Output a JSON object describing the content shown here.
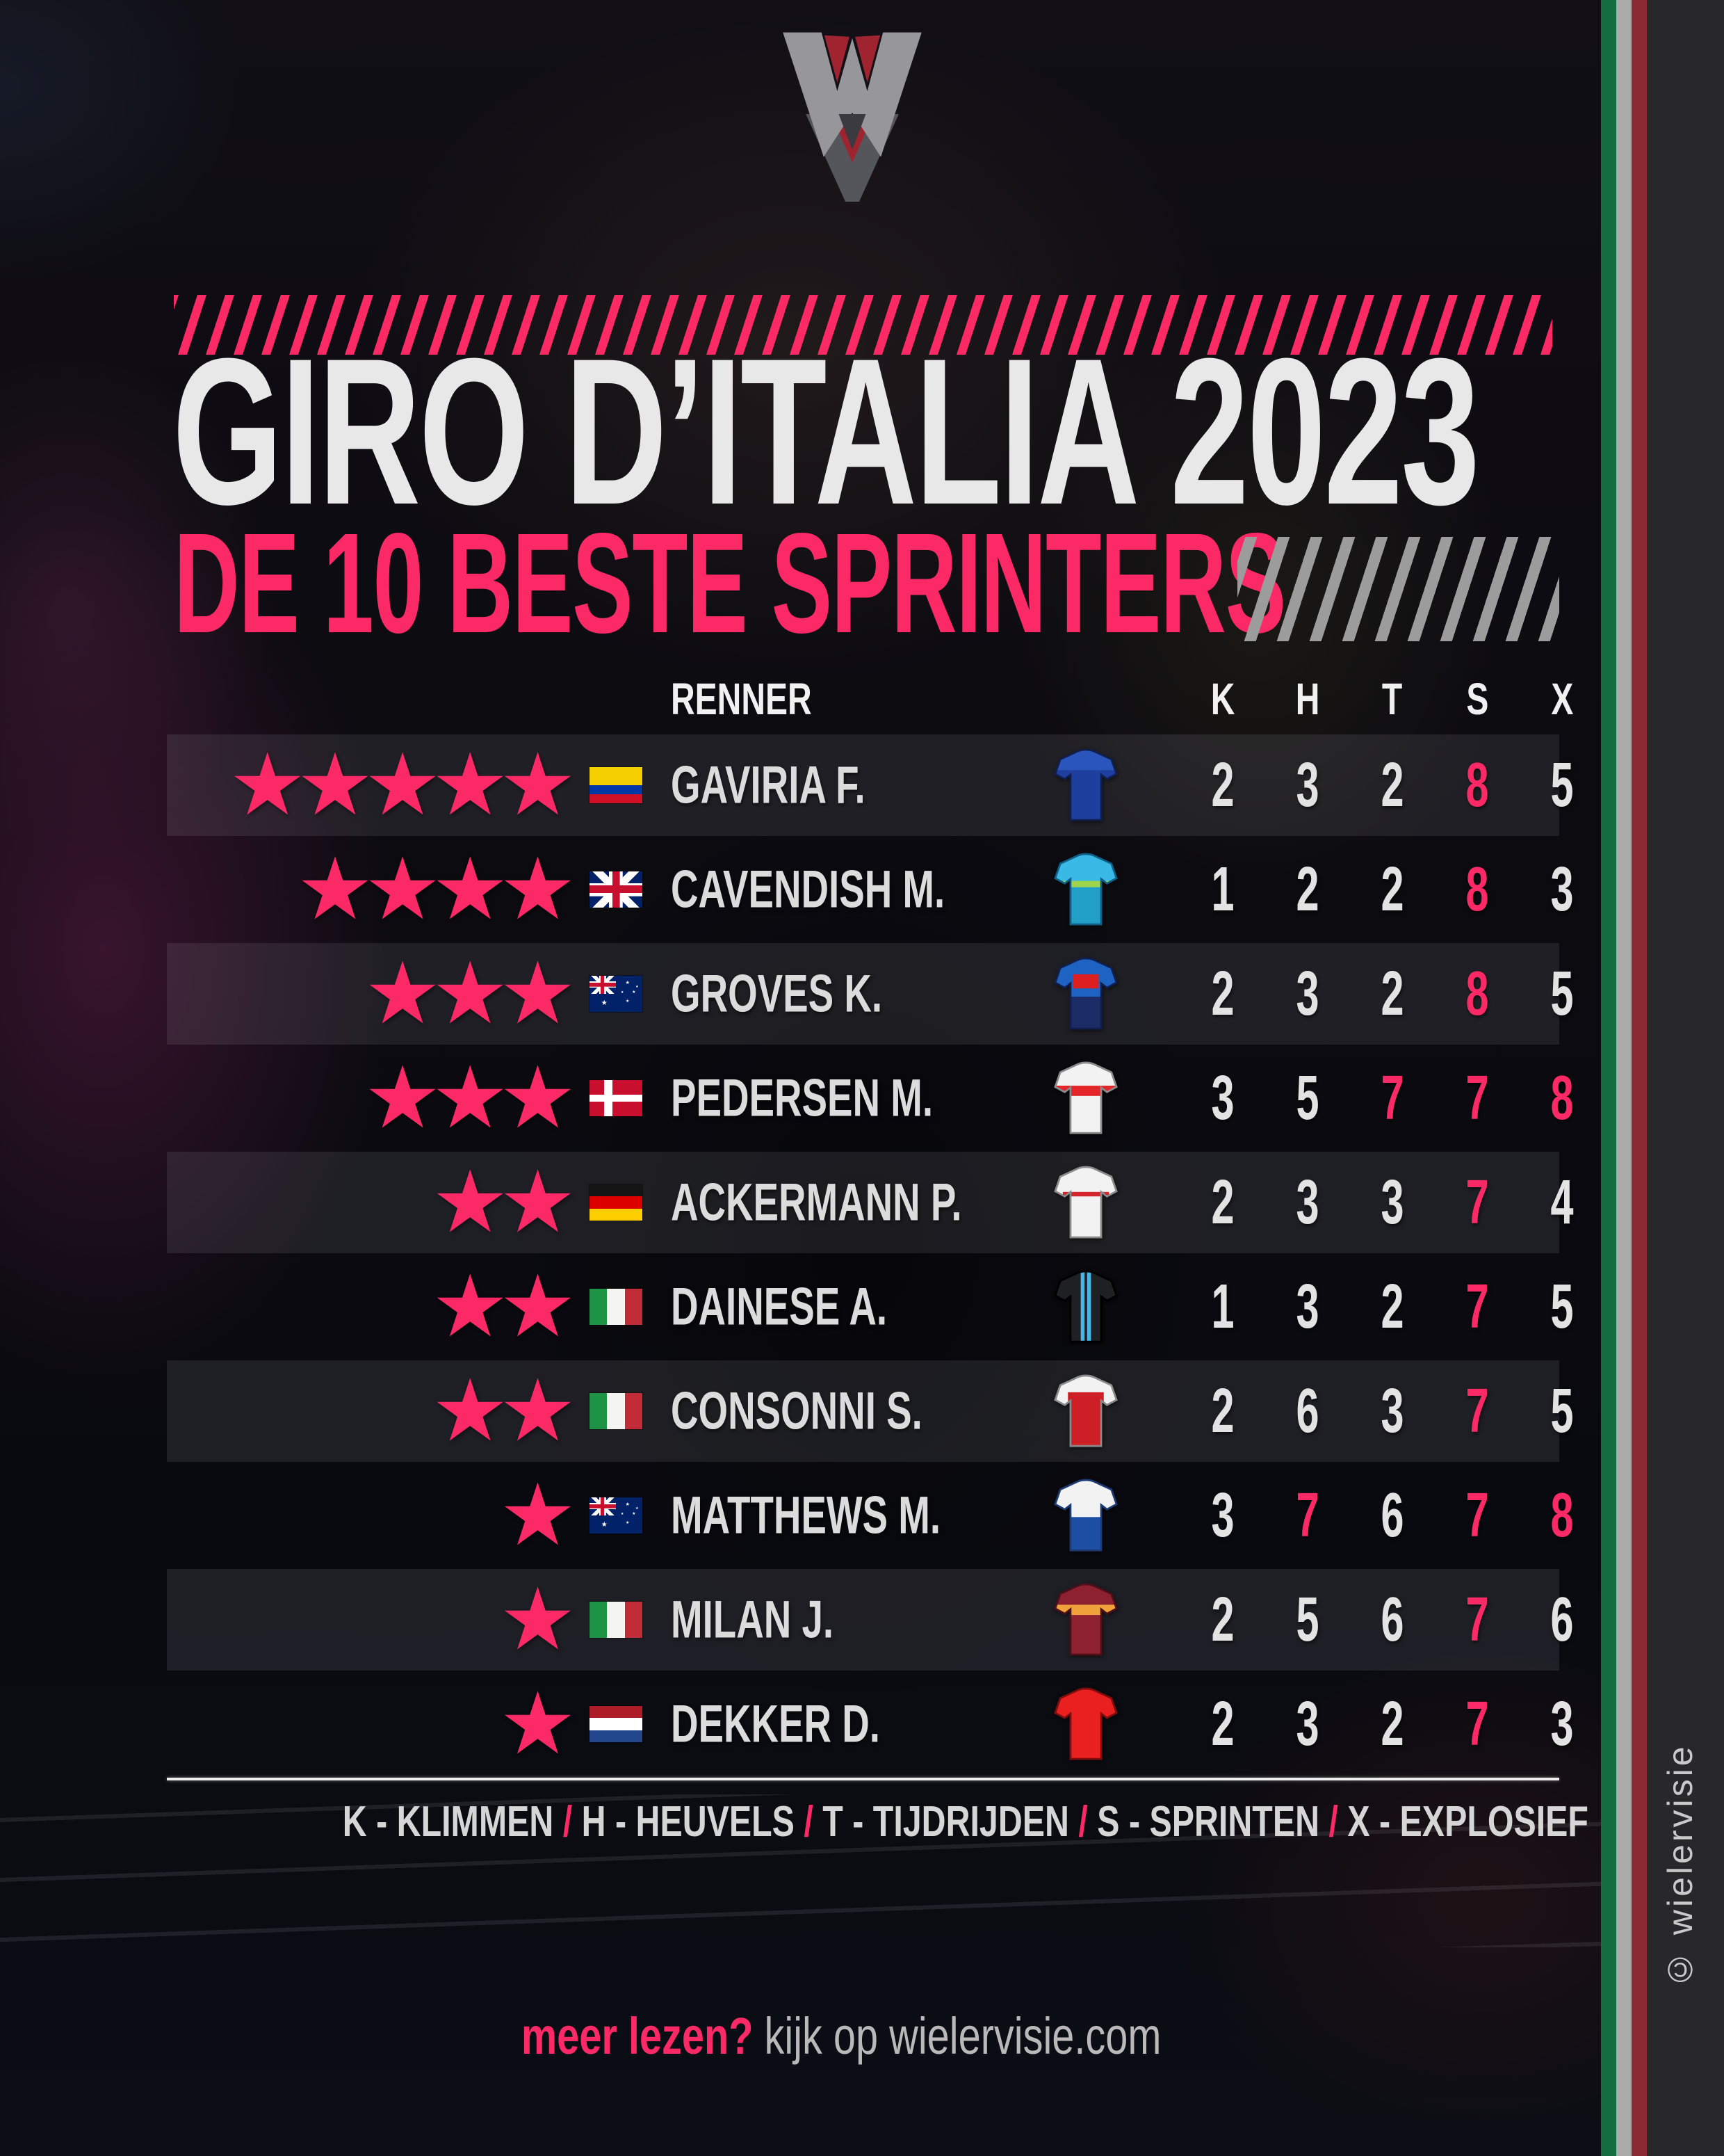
{
  "colors": {
    "pink": "#fb2a66",
    "white_text": "#e8e8e8",
    "gray_stripe": "#9c9c9c",
    "band_green": "#156c3e",
    "band_white": "#ababab",
    "band_red": "#8c2a33",
    "side_dark": "#28282a"
  },
  "branding": {
    "logo": "wielervisie-monogram",
    "copyright_vertical": "© wielervisie",
    "footer_prompt": "meer lezen?",
    "footer_rest": " kijk op wielervisie.com"
  },
  "header": {
    "title": "GIRO D’ITALIA 2023",
    "subtitle": "DE 10 BESTE SPRINTERS"
  },
  "table": {
    "name_header": "RENNER",
    "score_headers": [
      "K",
      "H",
      "T",
      "S",
      "X"
    ],
    "star_glyph": "★",
    "rows": [
      {
        "name": "GAVIRIA F.",
        "stars": 5,
        "flag": "colombia",
        "scores": [
          2,
          3,
          2,
          8,
          5
        ],
        "pink": [
          false,
          false,
          false,
          true,
          false
        ],
        "jersey": {
          "base": "#1e3f9e",
          "outline": "#101f4e",
          "layers": [
            {
              "x": 0,
              "y": 0,
              "w": 100,
              "h": 34,
              "c": "#2a55bb"
            }
          ]
        }
      },
      {
        "name": "CAVENDISH M.",
        "stars": 4,
        "flag": "uk",
        "scores": [
          1,
          2,
          2,
          8,
          3
        ],
        "pink": [
          false,
          false,
          false,
          true,
          false
        ],
        "jersey": {
          "base": "#3ab9e6",
          "outline": "#0f5e86",
          "layers": [
            {
              "x": 0,
              "y": 44,
              "w": 100,
              "h": 10,
              "c": "#9ed44d"
            },
            {
              "x": 0,
              "y": 54,
              "w": 100,
              "h": 61,
              "c": "#219fc6"
            }
          ]
        }
      },
      {
        "name": "GROVES K.",
        "stars": 3,
        "flag": "australia",
        "scores": [
          2,
          3,
          2,
          8,
          5
        ],
        "pink": [
          false,
          false,
          false,
          true,
          false
        ],
        "jersey": {
          "base": "#1e62c4",
          "outline": "#101f4e",
          "layers": [
            {
              "x": 0,
              "y": 62,
              "w": 100,
              "h": 53,
              "c": "#1b2c66"
            },
            {
              "x": 30,
              "y": 27,
              "w": 40,
              "h": 22,
              "c": "#de1f1f"
            }
          ]
        }
      },
      {
        "name": "PEDERSEN M.",
        "stars": 3,
        "flag": "denmark",
        "scores": [
          3,
          5,
          7,
          7,
          8
        ],
        "pink": [
          false,
          false,
          true,
          true,
          true
        ],
        "jersey": {
          "base": "#f2f2f2",
          "outline": "#8a8a8a",
          "layers": [
            {
              "x": 0,
              "y": 38,
              "w": 100,
              "h": 16,
              "c": "#e32428"
            }
          ]
        }
      },
      {
        "name": "ACKERMANN P.",
        "stars": 2,
        "flag": "germany",
        "scores": [
          2,
          3,
          3,
          7,
          4
        ],
        "pink": [
          false,
          false,
          false,
          true,
          false
        ],
        "jersey": {
          "base": "#f2f2f2",
          "outline": "#8a8a8a",
          "layers": [
            {
              "x": 14,
              "y": 41,
              "w": 72,
              "h": 7,
              "c": "#d5232e"
            }
          ]
        }
      },
      {
        "name": "DAINESE A.",
        "stars": 2,
        "flag": "italy",
        "scores": [
          1,
          3,
          2,
          7,
          5
        ],
        "pink": [
          false,
          false,
          false,
          true,
          false
        ],
        "jersey": {
          "base": "#1e2023",
          "outline": "#000000",
          "layers": [
            {
              "x": 42,
              "y": 0,
              "w": 6,
              "h": 115,
              "c": "#49b6e8"
            },
            {
              "x": 52,
              "y": 0,
              "w": 6,
              "h": 115,
              "c": "#49b6e8"
            }
          ]
        }
      },
      {
        "name": "CONSONNI S.",
        "stars": 2,
        "flag": "italy",
        "scores": [
          2,
          6,
          3,
          7,
          5
        ],
        "pink": [
          false,
          false,
          false,
          true,
          false
        ],
        "jersey": {
          "base": "#f2f2f2",
          "outline": "#8a8a8a",
          "layers": [
            {
              "x": 22,
              "y": 28,
              "w": 56,
              "h": 87,
              "c": "#ce1f26"
            }
          ]
        }
      },
      {
        "name": "MATTHEWS M.",
        "stars": 1,
        "flag": "australia",
        "scores": [
          3,
          7,
          6,
          7,
          8
        ],
        "pink": [
          false,
          true,
          false,
          true,
          true
        ],
        "jersey": {
          "base": "#f2f2f2",
          "outline": "#1c3a74",
          "layers": [
            {
              "x": 0,
              "y": 60,
              "w": 100,
              "h": 55,
              "c": "#1c4fa4"
            }
          ]
        }
      },
      {
        "name": "MILAN J.",
        "stars": 1,
        "flag": "italy",
        "scores": [
          2,
          5,
          6,
          7,
          6
        ],
        "pink": [
          false,
          false,
          false,
          true,
          false
        ],
        "jersey": {
          "base": "#8e2130",
          "outline": "#4d0f18",
          "layers": [
            {
              "x": 0,
              "y": 34,
              "w": 100,
              "h": 16,
              "c": "#f2a23b"
            }
          ]
        }
      },
      {
        "name": "DEKKER D.",
        "stars": 1,
        "flag": "netherlands",
        "scores": [
          2,
          3,
          2,
          7,
          3
        ],
        "pink": [
          false,
          false,
          false,
          true,
          false
        ],
        "jersey": {
          "base": "#e9201f",
          "outline": "#7e0d0d",
          "layers": []
        }
      }
    ]
  },
  "legend": {
    "separator": "/",
    "items": [
      {
        "abbr": "K",
        "term": "KLIMMEN"
      },
      {
        "abbr": "H",
        "term": "HEUVELS"
      },
      {
        "abbr": "T",
        "term": "TIJDRIJDEN"
      },
      {
        "abbr": "S",
        "term": "SPRINTEN"
      },
      {
        "abbr": "X",
        "term": "EXPLOSIEF"
      }
    ]
  },
  "flags": {
    "colombia": {
      "type": "stripes-h",
      "stripes": [
        {
          "c": "#f6cf00",
          "w": 2
        },
        {
          "c": "#0038a8",
          "w": 1
        },
        {
          "c": "#ce1126",
          "w": 1
        }
      ]
    },
    "uk": {
      "type": "uk"
    },
    "australia": {
      "type": "australia"
    },
    "denmark": {
      "type": "denmark"
    },
    "germany": {
      "type": "stripes-h",
      "stripes": [
        {
          "c": "#141414",
          "w": 1
        },
        {
          "c": "#dd0000",
          "w": 1
        },
        {
          "c": "#ffce00",
          "w": 1
        }
      ]
    },
    "italy": {
      "type": "stripes-v",
      "stripes": [
        {
          "c": "#1f9345",
          "w": 1
        },
        {
          "c": "#f4f5f0",
          "w": 1
        },
        {
          "c": "#c22b38",
          "w": 1
        }
      ]
    },
    "netherlands": {
      "type": "stripes-h",
      "stripes": [
        {
          "c": "#ae1c28",
          "w": 1
        },
        {
          "c": "#ffffff",
          "w": 1
        },
        {
          "c": "#21468b",
          "w": 1
        }
      ]
    }
  },
  "chart_data": {
    "type": "table",
    "title": "GIRO D’ITALIA 2023 — DE 10 BESTE SPRINTERS",
    "columns": [
      "RENNER",
      "K",
      "H",
      "T",
      "S",
      "X"
    ],
    "star_rating_max": 5,
    "rows": [
      {
        "renner": "GAVIRIA F.",
        "land": "colombia",
        "sterren": 5,
        "K": 2,
        "H": 3,
        "T": 2,
        "S": 8,
        "X": 5
      },
      {
        "renner": "CAVENDISH M.",
        "land": "uk",
        "sterren": 4,
        "K": 1,
        "H": 2,
        "T": 2,
        "S": 8,
        "X": 3
      },
      {
        "renner": "GROVES K.",
        "land": "australia",
        "sterren": 3,
        "K": 2,
        "H": 3,
        "T": 2,
        "S": 8,
        "X": 5
      },
      {
        "renner": "PEDERSEN M.",
        "land": "denmark",
        "sterren": 3,
        "K": 3,
        "H": 5,
        "T": 7,
        "S": 7,
        "X": 8
      },
      {
        "renner": "ACKERMANN P.",
        "land": "germany",
        "sterren": 2,
        "K": 2,
        "H": 3,
        "T": 3,
        "S": 7,
        "X": 4
      },
      {
        "renner": "DAINESE A.",
        "land": "italy",
        "sterren": 2,
        "K": 1,
        "H": 3,
        "T": 2,
        "S": 7,
        "X": 5
      },
      {
        "renner": "CONSONNI S.",
        "land": "italy",
        "sterren": 2,
        "K": 2,
        "H": 6,
        "T": 3,
        "S": 7,
        "X": 5
      },
      {
        "renner": "MATTHEWS M.",
        "land": "australia",
        "sterren": 1,
        "K": 3,
        "H": 7,
        "T": 6,
        "S": 7,
        "X": 8
      },
      {
        "renner": "MILAN J.",
        "land": "italy",
        "sterren": 1,
        "K": 2,
        "H": 5,
        "T": 6,
        "S": 7,
        "X": 6
      },
      {
        "renner": "DEKKER D.",
        "land": "netherlands",
        "sterren": 1,
        "K": 2,
        "H": 3,
        "T": 2,
        "S": 7,
        "X": 3
      }
    ],
    "legend": "K - KLIMMEN / H - HEUVELS / T - TIJDRIJDEN / S - SPRINTEN / X - EXPLOSIEF",
    "highlight_rule": "scores van 7 of hoger in roze"
  }
}
